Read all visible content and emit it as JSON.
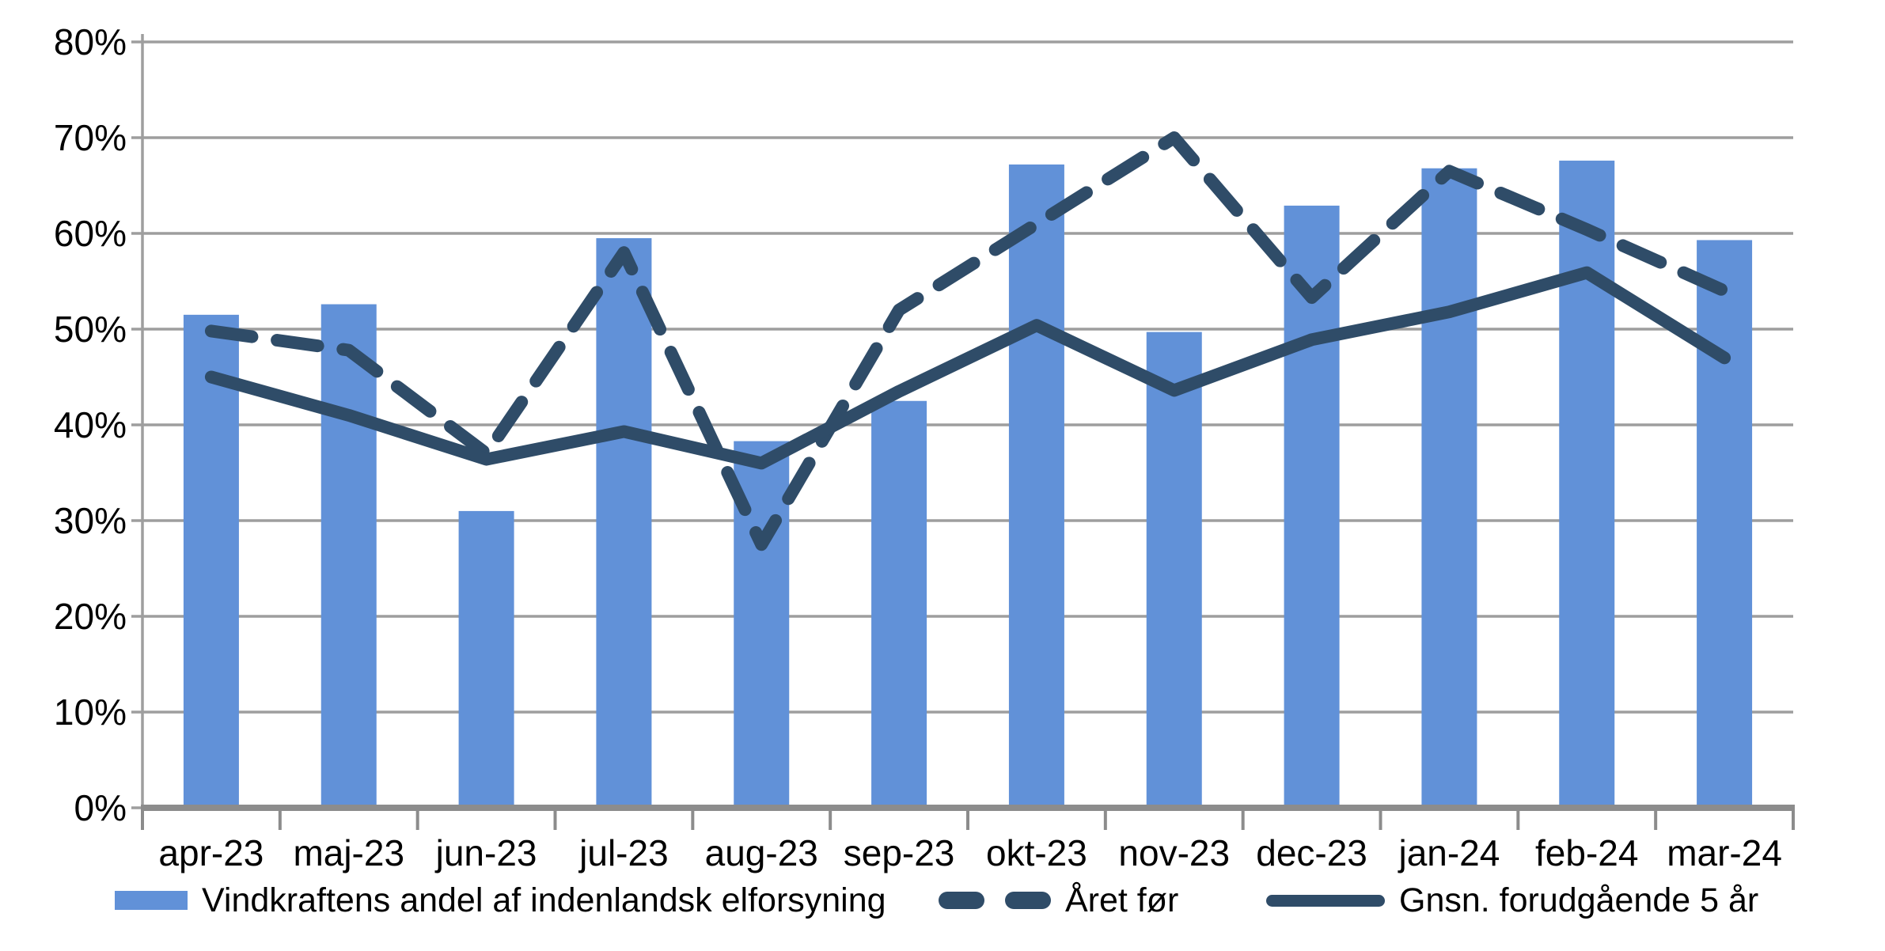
{
  "chart_data": {
    "type": "bar",
    "subtype": "combo-bar-line",
    "categories": [
      "apr-23",
      "maj-23",
      "jun-23",
      "jul-23",
      "aug-23",
      "sep-23",
      "okt-23",
      "nov-23",
      "dec-23",
      "jan-24",
      "feb-24",
      "mar-24"
    ],
    "series": [
      {
        "name": "Vindkraftens andel af indenlandsk elforsyning",
        "type": "bar",
        "style": "solid",
        "color": "#6191D8",
        "values": [
          51.5,
          52.6,
          31.0,
          59.5,
          38.3,
          42.5,
          67.2,
          49.7,
          62.9,
          66.8,
          67.6,
          59.3
        ]
      },
      {
        "name": "Året før",
        "type": "line",
        "style": "dashed",
        "color": "#2F4C68",
        "values": [
          49.8,
          47.8,
          37.0,
          58.0,
          27.5,
          52.0,
          61.0,
          70.0,
          53.3,
          66.5,
          60.4,
          54.0
        ]
      },
      {
        "name": "Gnsn. forudgående 5 år",
        "type": "line",
        "style": "solid",
        "color": "#2F4C68",
        "values": [
          45.0,
          41.0,
          36.4,
          39.3,
          36.0,
          43.5,
          50.4,
          43.6,
          48.9,
          51.8,
          55.9,
          47.0
        ]
      }
    ],
    "title": "",
    "xlabel": "",
    "ylabel": "",
    "ylim": [
      0,
      80
    ],
    "y_tick_step": 10,
    "y_tick_labels": [
      "0%",
      "10%",
      "20%",
      "30%",
      "40%",
      "50%",
      "60%",
      "70%",
      "80%"
    ],
    "grid": true,
    "legend_position": "bottom",
    "colors": {
      "gridline": "#9E9E9E",
      "axis_line": "#9E9E9E",
      "axis_band": "#8C8C8C",
      "text": "#000000",
      "background": "#FFFFFF"
    }
  }
}
